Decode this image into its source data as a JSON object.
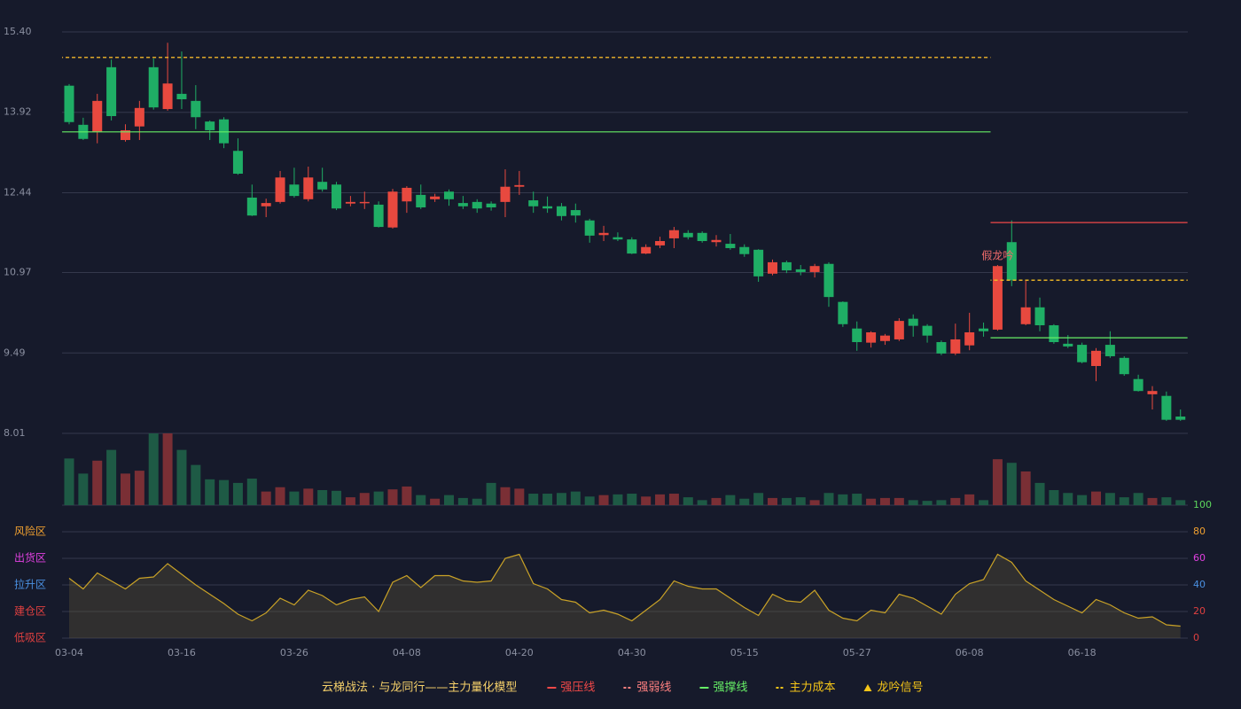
{
  "chart_data": {
    "type": "candlestick",
    "categories": [
      "03-04",
      null,
      null,
      null,
      null,
      null,
      null,
      null,
      "03-16",
      null,
      null,
      null,
      null,
      null,
      null,
      null,
      "03-26",
      null,
      null,
      null,
      null,
      null,
      null,
      null,
      "04-08",
      null,
      null,
      null,
      null,
      null,
      null,
      null,
      "04-20",
      null,
      null,
      null,
      null,
      null,
      null,
      null,
      "04-30",
      null,
      null,
      null,
      null,
      null,
      null,
      null,
      "05-15",
      null,
      null,
      null,
      null,
      null,
      null,
      null,
      "05-27",
      null,
      null,
      null,
      null,
      null,
      null,
      null,
      "06-08",
      null,
      null,
      null,
      null,
      null,
      null,
      null,
      "06-18",
      null,
      null,
      null,
      null,
      null,
      null,
      null
    ],
    "price": {
      "ylim": [
        8.01,
        15.4
      ],
      "yticks": [
        {
          "value": 15.4,
          "label": "15.40"
        },
        13.92,
        12.44,
        10.97,
        9.49,
        8.01
      ],
      "grid": true,
      "up_color": "#e8493f",
      "down_color": "#1fae65",
      "open": [
        14.41,
        13.69,
        13.56,
        14.75,
        13.41,
        13.66,
        14.75,
        13.98,
        14.26,
        14.13,
        13.75,
        13.79,
        13.21,
        12.35,
        12.19,
        12.27,
        12.59,
        12.32,
        12.64,
        12.59,
        12.24,
        12.25,
        12.22,
        11.8,
        12.28,
        12.4,
        12.32,
        12.46,
        12.25,
        12.27,
        12.24,
        12.27,
        12.55,
        12.3,
        12.19,
        12.19,
        12.12,
        11.93,
        11.66,
        11.62,
        11.58,
        11.32,
        11.47,
        11.6,
        11.7,
        11.7,
        11.53,
        11.5,
        11.44,
        11.39,
        10.95,
        11.16,
        11.03,
        10.98,
        11.13,
        10.43,
        9.94,
        9.68,
        9.71,
        9.74,
        10.12,
        9.99,
        9.69,
        9.48,
        9.63,
        9.94,
        9.92,
        11.53,
        10.02,
        10.33,
        10.0,
        9.66,
        9.64,
        9.25,
        9.64,
        9.4,
        9.01,
        8.73,
        8.7,
        8.32
      ],
      "high": [
        14.44,
        13.82,
        14.26,
        14.89,
        13.7,
        14.13,
        14.91,
        15.2,
        15.04,
        14.42,
        13.77,
        13.83,
        13.44,
        12.59,
        12.33,
        12.84,
        12.9,
        12.92,
        12.9,
        12.64,
        12.38,
        12.46,
        12.28,
        12.51,
        12.56,
        12.59,
        12.42,
        12.5,
        12.38,
        12.32,
        12.28,
        12.87,
        12.84,
        12.46,
        12.37,
        12.25,
        12.24,
        11.96,
        11.83,
        11.71,
        11.62,
        11.49,
        11.63,
        11.81,
        11.75,
        11.73,
        11.66,
        11.68,
        11.49,
        11.4,
        11.21,
        11.19,
        11.11,
        11.13,
        11.16,
        10.44,
        10.07,
        9.89,
        9.84,
        10.13,
        10.2,
        10.02,
        9.72,
        10.03,
        10.23,
        10.05,
        11.11,
        11.93,
        10.83,
        10.51,
        10.02,
        9.82,
        9.68,
        9.58,
        9.89,
        9.43,
        9.09,
        8.88,
        8.78,
        8.45
      ],
      "low": [
        13.7,
        13.41,
        13.35,
        13.77,
        13.38,
        13.41,
        13.97,
        13.95,
        13.98,
        13.61,
        13.41,
        13.26,
        12.77,
        12.01,
        11.99,
        12.24,
        12.35,
        12.28,
        12.46,
        12.12,
        12.19,
        12.14,
        11.8,
        11.78,
        12.07,
        12.14,
        12.27,
        12.2,
        12.14,
        12.07,
        12.11,
        11.99,
        12.4,
        12.07,
        12.07,
        11.93,
        11.89,
        11.52,
        11.55,
        11.55,
        11.31,
        11.31,
        11.42,
        11.42,
        11.58,
        11.52,
        11.45,
        11.39,
        11.26,
        10.8,
        10.92,
        10.96,
        10.92,
        10.88,
        10.34,
        9.97,
        9.53,
        9.59,
        9.64,
        9.71,
        9.79,
        9.68,
        9.45,
        9.45,
        9.54,
        9.79,
        9.9,
        10.72,
        10.0,
        9.89,
        9.66,
        9.58,
        9.3,
        8.97,
        9.4,
        9.07,
        8.78,
        8.45,
        8.24,
        8.24
      ],
      "close": [
        13.74,
        13.43,
        14.13,
        13.85,
        13.59,
        14.0,
        14.01,
        14.45,
        14.16,
        13.83,
        13.59,
        13.35,
        12.79,
        12.02,
        12.25,
        12.72,
        12.38,
        12.72,
        12.5,
        12.15,
        12.27,
        12.27,
        11.81,
        12.46,
        12.53,
        12.17,
        12.37,
        12.32,
        12.19,
        12.15,
        12.17,
        12.55,
        12.58,
        12.19,
        12.15,
        12.01,
        12.02,
        11.65,
        11.7,
        11.58,
        11.32,
        11.44,
        11.55,
        11.75,
        11.62,
        11.55,
        11.57,
        11.42,
        11.31,
        10.9,
        11.16,
        11.01,
        10.98,
        11.09,
        10.52,
        10.02,
        9.69,
        9.87,
        9.81,
        10.08,
        9.99,
        9.81,
        9.48,
        9.74,
        9.87,
        9.89,
        11.09,
        10.83,
        10.33,
        10.0,
        9.69,
        9.61,
        9.32,
        9.53,
        9.43,
        9.1,
        8.79,
        8.79,
        8.26,
        8.26
      ]
    },
    "annotations": [
      {
        "text": "假龙吟",
        "index": 66,
        "color": "#f06b6b"
      }
    ],
    "volume": {
      "ylim": [
        0,
        100
      ],
      "up_color": "#7a2f35",
      "down_color": "#1e5a45",
      "values": [
        65,
        44,
        62,
        77,
        44,
        48,
        100,
        100,
        77,
        56,
        36,
        35,
        31,
        37,
        19,
        25,
        19,
        23,
        21,
        20,
        11,
        17,
        19,
        22,
        26,
        14,
        9,
        14,
        10,
        9,
        31,
        25,
        23,
        16,
        16,
        17,
        19,
        12,
        14,
        15,
        16,
        12,
        15,
        16,
        11,
        7,
        10,
        14,
        9,
        17,
        10,
        10,
        11,
        7,
        17,
        15,
        16,
        9,
        10,
        10,
        7,
        6,
        7,
        10,
        15,
        7,
        64,
        59,
        47,
        31,
        21,
        17,
        14,
        19,
        17,
        11,
        17,
        10,
        11,
        7
      ]
    },
    "indicator": {
      "ylim": [
        0,
        100
      ],
      "yticks": [
        100,
        80,
        60,
        40,
        20,
        0
      ],
      "ytick_colors": [
        "#5cd65c",
        "#f0a030",
        "#e040e0",
        "#4a90e2",
        "#e04040",
        "#e04040"
      ],
      "color": "#c9a227",
      "zones": [
        {
          "label": "风险区",
          "value": 80,
          "color": "#f0a030"
        },
        {
          "label": "出货区",
          "value": 60,
          "color": "#e040e0"
        },
        {
          "label": "拉升区",
          "value": 40,
          "color": "#4a90e2"
        },
        {
          "label": "建仓区",
          "value": 20,
          "color": "#e04040"
        },
        {
          "label": "低吸区",
          "value": 0,
          "color": "#e04040"
        }
      ],
      "values": [
        45,
        37,
        49,
        43,
        37,
        45,
        46,
        56,
        48,
        40,
        33,
        26,
        18,
        13,
        19,
        30,
        25,
        36,
        32,
        25,
        29,
        31,
        20,
        42,
        47,
        38,
        47,
        47,
        43,
        42,
        43,
        60,
        63,
        41,
        37,
        29,
        27,
        19,
        21,
        18,
        13,
        21,
        29,
        43,
        39,
        37,
        37,
        30,
        23,
        17,
        33,
        28,
        27,
        36,
        21,
        15,
        13,
        21,
        19,
        33,
        30,
        24,
        18,
        33,
        41,
        44,
        63,
        57,
        43,
        36,
        29,
        24,
        19,
        29,
        25,
        19,
        15,
        16,
        10,
        9
      ]
    },
    "legend": {
      "title": "云梯战法 · 与龙同行——主力量化模型",
      "title_color": "#f5d06a",
      "items": [
        {
          "name": "强压线",
          "color": "#f04848",
          "style": "solid",
          "lines": [
            {
              "value": 11.89,
              "from": 66,
              "to": 79
            }
          ]
        },
        {
          "name": "强弱线",
          "color": "#ff8080",
          "style": "dashed",
          "lines": [
            {
              "value": 14.93,
              "from": 0,
              "to": 65
            },
            {
              "value": 10.83,
              "from": 66,
              "to": 79
            }
          ]
        },
        {
          "name": "强撑线",
          "color": "#66ee66",
          "style": "solid",
          "lines": [
            {
              "value": 13.56,
              "from": 0,
              "to": 65
            },
            {
              "value": 9.77,
              "from": 66,
              "to": 79
            }
          ]
        },
        {
          "name": "主力成本",
          "color": "#f5c518",
          "style": "dashed",
          "lines": [
            {
              "value": 14.93,
              "from": 0,
              "to": 65
            },
            {
              "value": 10.83,
              "from": 66,
              "to": 79
            }
          ]
        },
        {
          "name": "龙吟信号",
          "color": "#f5c518",
          "style": "triangle",
          "lines": []
        }
      ]
    }
  }
}
